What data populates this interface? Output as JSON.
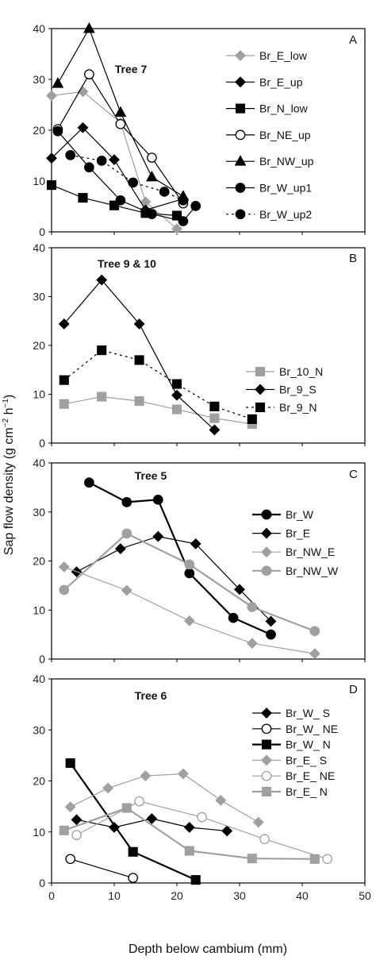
{
  "figure": {
    "ylabel_main": "Sap flow density (g cm",
    "ylabel_exp1": "−2",
    "ylabel_mid": " h",
    "ylabel_exp2": "−1",
    "ylabel_end": ")",
    "xlabel": "Depth below cambium (mm)",
    "x_ticks": [
      "0",
      "10",
      "20",
      "30",
      "40",
      "50"
    ]
  },
  "chart_data": [
    {
      "type": "line",
      "panel": "A",
      "title": "Tree 7",
      "xlim": [
        0,
        50
      ],
      "ylim": [
        0,
        40
      ],
      "y_ticks": [
        "0",
        "10",
        "20",
        "30",
        "40"
      ],
      "series": [
        {
          "name": "Br_E_low",
          "color": "#a0a0a0",
          "marker": "diamond",
          "filled": true,
          "dash": false,
          "width": 1.2,
          "x": [
            0,
            5,
            11,
            15,
            20
          ],
          "y": [
            26.8,
            27.6,
            21.5,
            5.9,
            0.6
          ]
        },
        {
          "name": "Br_E_up",
          "color": "#000000",
          "marker": "diamond",
          "filled": true,
          "dash": false,
          "width": 1.2,
          "x": [
            0,
            5,
            10,
            15,
            21
          ],
          "y": [
            14.5,
            20.5,
            14.2,
            4.3,
            6.5
          ]
        },
        {
          "name": "Br_N_low",
          "color": "#000000",
          "marker": "square",
          "filled": true,
          "dash": false,
          "width": 1.2,
          "x": [
            0,
            5,
            10,
            15,
            20
          ],
          "y": [
            9.2,
            6.7,
            5.2,
            3.7,
            3.2
          ]
        },
        {
          "name": "Br_NE_up",
          "color": "#000000",
          "marker": "circle",
          "filled": false,
          "dash": false,
          "width": 1.2,
          "x": [
            1,
            6,
            11,
            16,
            21
          ],
          "y": [
            20.2,
            31.0,
            21.2,
            14.6,
            5.6
          ]
        },
        {
          "name": "Br_NW_up",
          "color": "#000000",
          "marker": "triangle",
          "filled": true,
          "dash": false,
          "width": 1.2,
          "x": [
            1,
            6,
            11,
            16,
            21
          ],
          "y": [
            29.2,
            40.0,
            23.5,
            10.8,
            7.0
          ]
        },
        {
          "name": "Br_W_up1",
          "color": "#000000",
          "marker": "circle",
          "filled": true,
          "dash": false,
          "width": 1.2,
          "x": [
            1,
            6,
            11,
            16,
            21,
            23
          ],
          "y": [
            19.8,
            12.7,
            6.2,
            3.5,
            2.1,
            5.1
          ]
        },
        {
          "name": "Br_W_up2",
          "color": "#000000",
          "marker": "circle",
          "filled": true,
          "dash": true,
          "width": 1.2,
          "x": [
            3,
            8,
            13,
            18,
            21
          ],
          "y": [
            15.1,
            14.0,
            9.7,
            7.9,
            6.2
          ]
        }
      ]
    },
    {
      "type": "line",
      "panel": "B",
      "title": "Tree 9 & 10",
      "xlim": [
        0,
        50
      ],
      "ylim": [
        0,
        40
      ],
      "y_ticks": [
        "0",
        "10",
        "20",
        "30",
        "40"
      ],
      "series": [
        {
          "name": "Br_10_N",
          "color": "#a0a0a0",
          "marker": "square",
          "filled": true,
          "dash": false,
          "width": 1.2,
          "x": [
            2,
            8,
            14,
            20,
            26,
            32
          ],
          "y": [
            8.0,
            9.5,
            8.6,
            6.9,
            5.1,
            3.9
          ]
        },
        {
          "name": "Br_9_S",
          "color": "#000000",
          "marker": "diamond",
          "filled": true,
          "dash": false,
          "width": 1.2,
          "x": [
            2,
            8,
            14,
            20,
            26
          ],
          "y": [
            24.4,
            33.4,
            24.4,
            9.8,
            2.7
          ]
        },
        {
          "name": "Br_9_N",
          "color": "#000000",
          "marker": "square",
          "filled": true,
          "dash": true,
          "width": 1.2,
          "x": [
            2,
            8,
            14,
            20,
            26,
            32
          ],
          "y": [
            12.9,
            19.0,
            17.0,
            12.1,
            7.5,
            4.9
          ]
        }
      ]
    },
    {
      "type": "line",
      "panel": "C",
      "title": "Tree 5",
      "xlim": [
        0,
        50
      ],
      "ylim": [
        0,
        40
      ],
      "y_ticks": [
        "0",
        "10",
        "20",
        "30",
        "40"
      ],
      "series": [
        {
          "name": "Br_W",
          "color": "#000000",
          "marker": "circle",
          "filled": true,
          "dash": false,
          "width": 2.2,
          "x": [
            6,
            12,
            17,
            22,
            29,
            35
          ],
          "y": [
            36.0,
            32.0,
            32.5,
            17.5,
            8.4,
            5.0
          ]
        },
        {
          "name": "Br_E",
          "color": "#000000",
          "marker": "diamond",
          "filled": true,
          "dash": false,
          "width": 1.2,
          "x": [
            4,
            11,
            17,
            23,
            30,
            35
          ],
          "y": [
            17.8,
            22.5,
            25.0,
            23.5,
            14.2,
            7.7
          ]
        },
        {
          "name": "Br_NW_E",
          "color": "#a0a0a0",
          "marker": "diamond",
          "filled": true,
          "dash": false,
          "width": 1.2,
          "x": [
            2,
            12,
            22,
            32,
            42
          ],
          "y": [
            18.8,
            14.0,
            7.8,
            3.2,
            1.1
          ]
        },
        {
          "name": "Br_NW_W",
          "color": "#a0a0a0",
          "marker": "circle",
          "filled": true,
          "dash": false,
          "width": 2.2,
          "x": [
            2,
            12,
            22,
            32,
            42
          ],
          "y": [
            14.1,
            25.6,
            19.3,
            10.6,
            5.7
          ]
        }
      ]
    },
    {
      "type": "line",
      "panel": "D",
      "title": "Tree 6",
      "xlim": [
        0,
        50
      ],
      "ylim": [
        0,
        40
      ],
      "y_ticks": [
        "0",
        "10",
        "20",
        "30",
        "40"
      ],
      "series": [
        {
          "name": "Br_W_ S",
          "color": "#000000",
          "marker": "diamond",
          "filled": true,
          "dash": false,
          "width": 1.2,
          "x": [
            4,
            10,
            16,
            22,
            28
          ],
          "y": [
            12.4,
            10.9,
            12.6,
            10.9,
            10.2
          ]
        },
        {
          "name": "Br_W_ NE",
          "color": "#000000",
          "marker": "circle",
          "filled": false,
          "dash": false,
          "width": 1.2,
          "x": [
            3,
            13
          ],
          "y": [
            4.7,
            1.0
          ]
        },
        {
          "name": "Br_W_ N",
          "color": "#000000",
          "marker": "square",
          "filled": true,
          "dash": false,
          "width": 2.2,
          "x": [
            3,
            13,
            23
          ],
          "y": [
            23.5,
            6.1,
            0.6
          ]
        },
        {
          "name": "Br_E_ S",
          "color": "#a0a0a0",
          "marker": "diamond",
          "filled": true,
          "dash": false,
          "width": 1.2,
          "x": [
            3,
            9,
            15,
            21,
            27,
            33
          ],
          "y": [
            14.9,
            18.6,
            21.0,
            21.4,
            16.2,
            11.9
          ]
        },
        {
          "name": "Br_E_ NE",
          "color": "#a0a0a0",
          "marker": "circle",
          "filled": false,
          "dash": false,
          "width": 1.2,
          "x": [
            4,
            14,
            24,
            34,
            44
          ],
          "y": [
            9.4,
            16.0,
            12.9,
            8.6,
            4.7
          ]
        },
        {
          "name": "Br_E_ N",
          "color": "#a0a0a0",
          "marker": "square",
          "filled": true,
          "dash": false,
          "width": 2.2,
          "x": [
            2,
            12,
            22,
            32,
            42
          ],
          "y": [
            10.3,
            14.7,
            6.3,
            4.8,
            4.7
          ]
        }
      ]
    }
  ]
}
